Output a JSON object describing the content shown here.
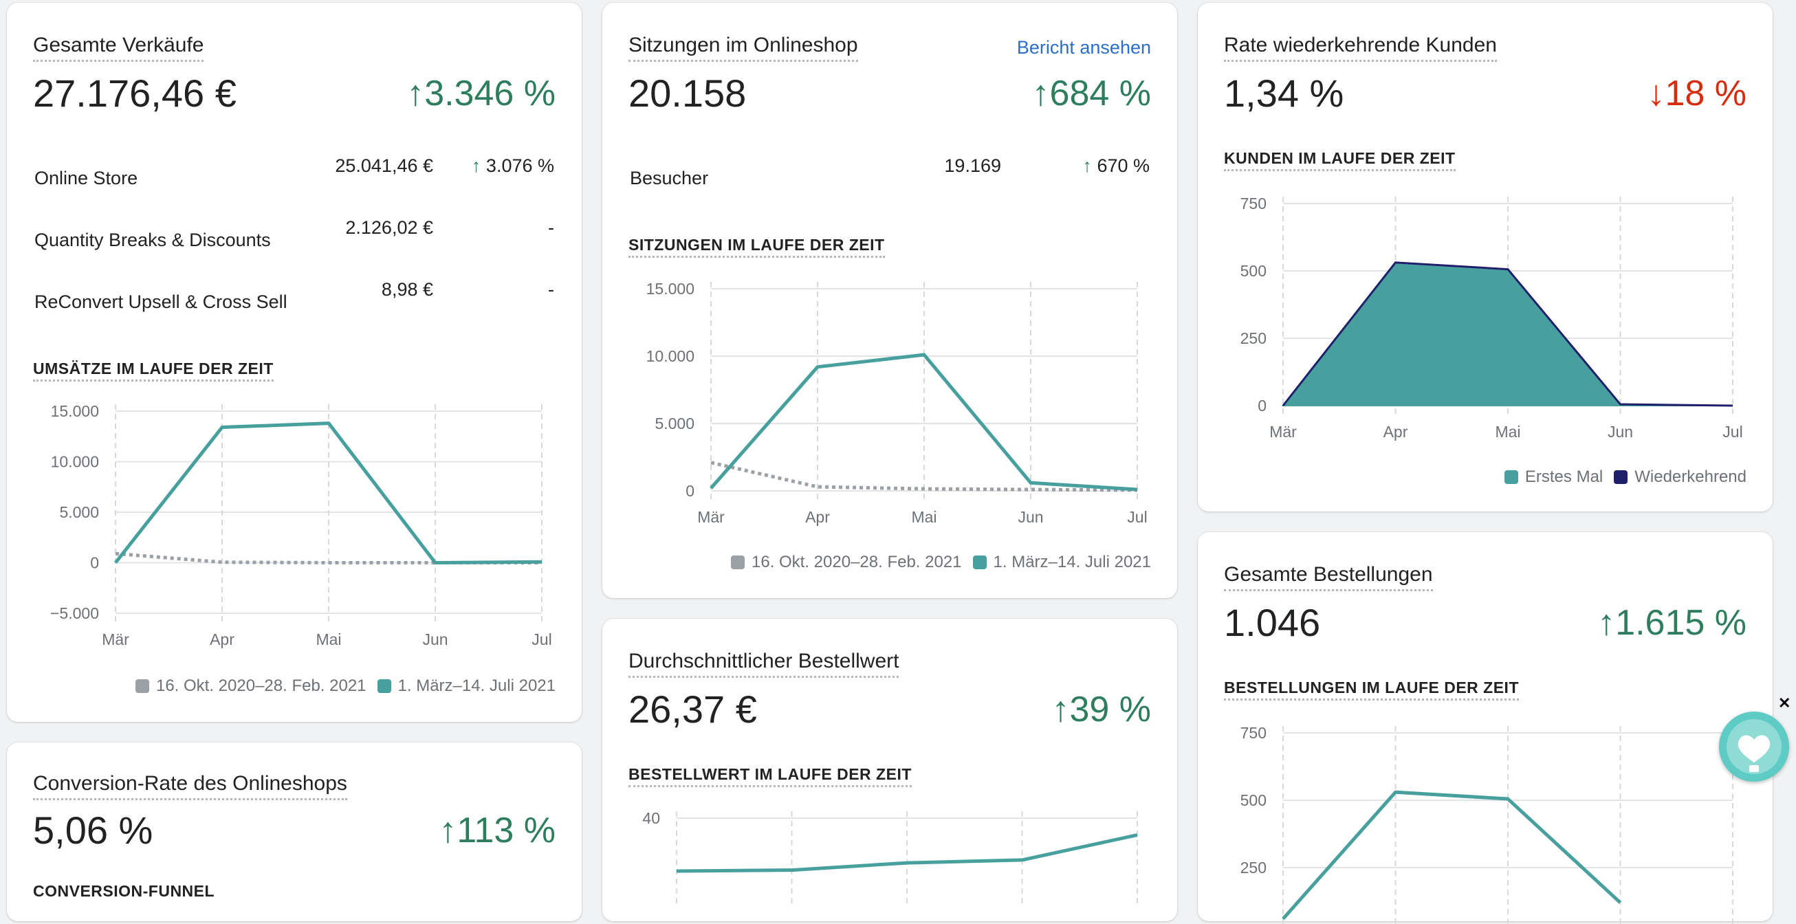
{
  "colors": {
    "teal": "#47a09e",
    "gray_dotted": "#9aa0a6",
    "navy": "#1f1f6b",
    "up": "#2e7d5f",
    "down": "#d72c0d",
    "link": "#2c6ecb"
  },
  "months": [
    "Mär",
    "Apr",
    "Mai",
    "Jun",
    "Jul"
  ],
  "total_sales": {
    "title": "Gesamte Verkäufe",
    "value": "27.176,46 €",
    "delta_arrow": "↑",
    "delta": "3.346 %",
    "rows": [
      {
        "label": "Online Store",
        "value": "25.041,46 €",
        "arrow": "↑",
        "pct": "3.076 %"
      },
      {
        "label": "Quantity Breaks & Discounts",
        "value": "2.126,02 €",
        "arrow": "",
        "pct": "-"
      },
      {
        "label": "ReConvert Upsell & Cross Sell",
        "value": "8,98 €",
        "arrow": "",
        "pct": "-"
      }
    ],
    "section_title": "UMSÄTZE IM LAUFE DER ZEIT",
    "legend_prev": "16. Okt. 2020–28. Feb. 2021",
    "legend_curr": "1. März–14. Juli 2021"
  },
  "sessions": {
    "title": "Sitzungen im Onlineshop",
    "link": "Bericht ansehen",
    "value": "20.158",
    "delta_arrow": "↑",
    "delta": "684 %",
    "rows": [
      {
        "label": "Besucher",
        "value": "19.169",
        "arrow": "↑",
        "pct": "670 %"
      }
    ],
    "section_title": "SITZUNGEN IM LAUFE DER ZEIT",
    "legend_prev": "16. Okt. 2020–28. Feb. 2021",
    "legend_curr": "1. März–14. Juli 2021"
  },
  "returning": {
    "title": "Rate wiederkehrende Kunden",
    "value": "1,34 %",
    "delta_arrow": "↓",
    "delta": "18 %",
    "section_title": "KUNDEN IM LAUFE DER ZEIT",
    "legend_first": "Erstes Mal",
    "legend_returning": "Wiederkehrend"
  },
  "avg_order": {
    "title": "Durchschnittlicher Bestellwert",
    "value": "26,37 €",
    "delta_arrow": "↑",
    "delta": "39 %",
    "section_title": "BESTELLWERT IM LAUFE DER ZEIT"
  },
  "orders": {
    "title": "Gesamte Bestellungen",
    "value": "1.046",
    "delta_arrow": "↑",
    "delta": "1.615 %",
    "section_title": "BESTELLUNGEN IM LAUFE DER ZEIT"
  },
  "conversion": {
    "title": "Conversion-Rate des Onlineshops",
    "value": "5,06 %",
    "delta_arrow": "↑",
    "delta": "113 %",
    "section_title": "CONVERSION-FUNNEL"
  },
  "chart_data": [
    {
      "type": "line",
      "ylabel": "",
      "categories": [
        "Mär",
        "Apr",
        "Mai",
        "Jun",
        "Jul"
      ],
      "y_ticks": [
        "15.000",
        "10.000",
        "5.000",
        "0",
        "−5.000"
      ],
      "ylim": [
        -5000,
        15000
      ],
      "grid": true,
      "series": [
        {
          "name": "1. März–14. Juli 2021",
          "values": [
            0,
            13400,
            13800,
            0,
            80
          ],
          "style": "solid"
        },
        {
          "name": "16. Okt. 2020–28. Feb. 2021",
          "values": [
            900,
            50,
            0,
            0,
            0
          ],
          "style": "dotted"
        }
      ]
    },
    {
      "type": "line",
      "categories": [
        "Mär",
        "Apr",
        "Mai",
        "Jun",
        "Jul"
      ],
      "y_ticks": [
        "15.000",
        "10.000",
        "5.000",
        "0"
      ],
      "ylim": [
        0,
        15000
      ],
      "grid": true,
      "series": [
        {
          "name": "1. März–14. Juli 2021",
          "values": [
            200,
            9200,
            10100,
            600,
            100
          ],
          "style": "solid"
        },
        {
          "name": "16. Okt. 2020–28. Feb. 2021",
          "values": [
            2100,
            300,
            150,
            100,
            50
          ],
          "style": "dotted"
        }
      ]
    },
    {
      "type": "area",
      "categories": [
        "Mär",
        "Apr",
        "Mai",
        "Jun",
        "Jul"
      ],
      "y_ticks": [
        "750",
        "500",
        "250",
        "0"
      ],
      "ylim": [
        0,
        750
      ],
      "grid": true,
      "legend": "bottom-right",
      "series": [
        {
          "name": "Erstes Mal",
          "values": [
            0,
            525,
            500,
            5,
            0
          ]
        },
        {
          "name": "Wiederkehrend",
          "values": [
            0,
            6,
            6,
            0,
            0
          ]
        }
      ]
    },
    {
      "type": "line",
      "y_ticks": [
        "40"
      ],
      "series": [
        {
          "values": [
            29,
            29.2,
            30.7,
            31.3,
            36.5
          ]
        }
      ]
    },
    {
      "type": "line",
      "y_ticks": [
        "750",
        "500",
        "250"
      ],
      "series": [
        {
          "values": [
            60,
            530,
            505,
            120
          ]
        }
      ]
    }
  ]
}
